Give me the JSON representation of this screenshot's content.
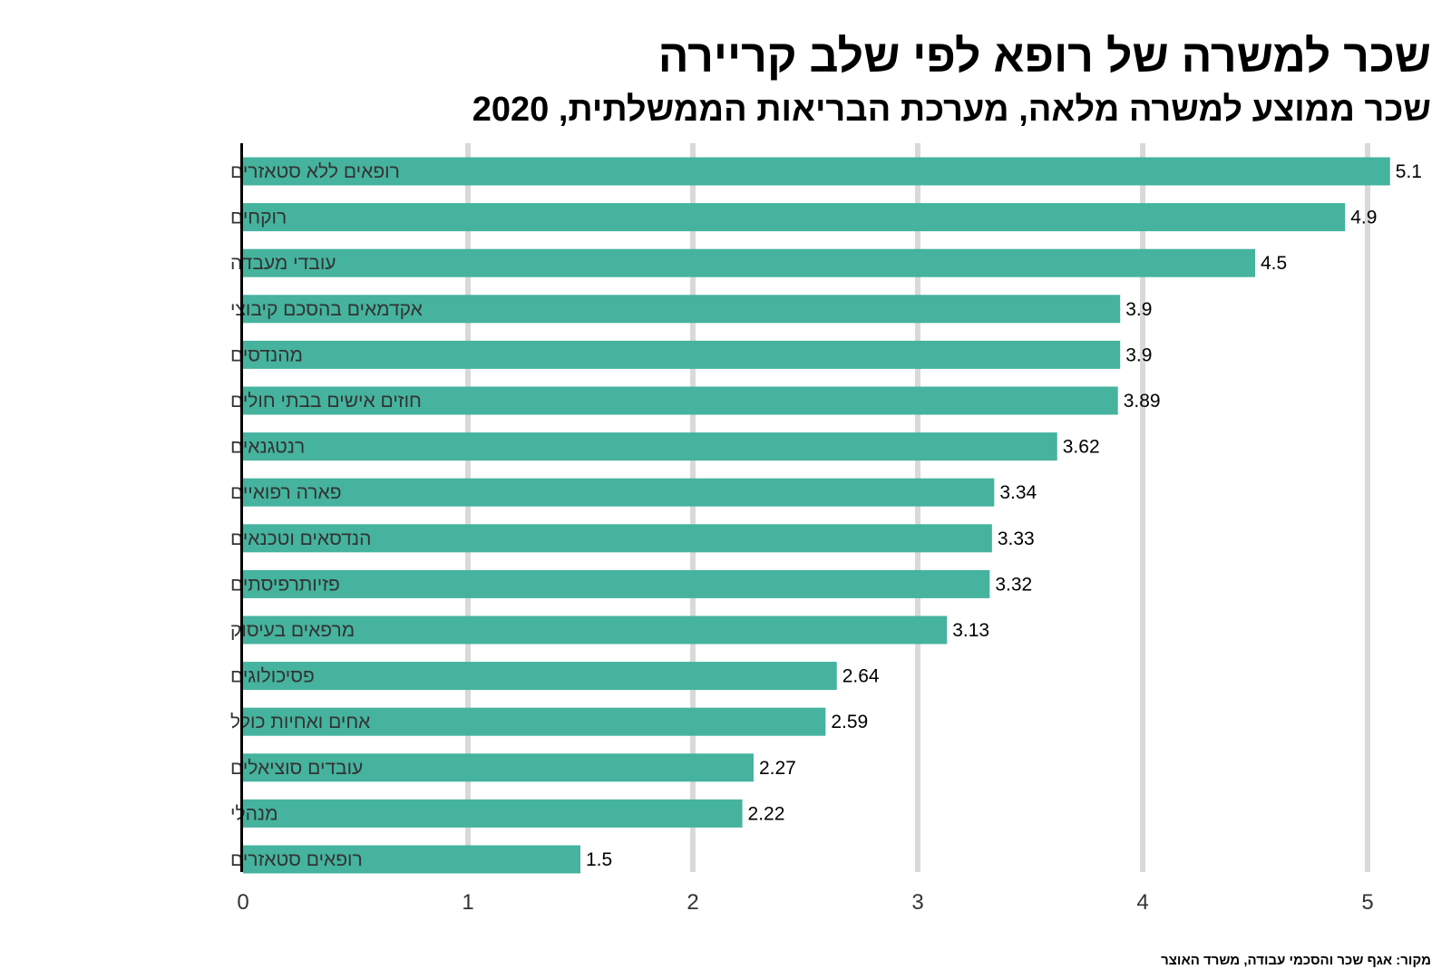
{
  "chart_data": {
    "type": "bar",
    "orientation": "horizontal",
    "title": "שכר למשרה של רופא לפי שלב קריירה",
    "subtitle": "שכר ממוצע למשרה מלאה, מערכת הבריאות הממשלתית, 2020",
    "source": "מקור: אגף שכר והסכמי עבודה, משרד האוצר",
    "categories": [
      "רופאים ללא סטאזרים",
      "רוקחים",
      "עובדי מעבדה",
      "אקדמאים בהסכם קיבוצי",
      "מהנדסים",
      "חוזים אישים בבתי חולים",
      "רנטגנאים",
      "פארה רפואיים",
      "הנדסאים וטכנאים",
      "פזיותרפיסתים",
      "מרפאים בעיסוק",
      "פסיכולוגים",
      "אחים ואחיות כולל",
      "עובדים סוציאלים",
      "מנהלי",
      "רופאים סטאזרים"
    ],
    "values": [
      5.1,
      4.9,
      4.5,
      3.9,
      3.9,
      3.89,
      3.62,
      3.34,
      3.33,
      3.32,
      3.13,
      2.64,
      2.59,
      2.27,
      2.22,
      1.5
    ],
    "value_labels": [
      "5.1",
      "4.9",
      "4.5",
      "3.9",
      "3.9",
      "3.89",
      "3.62",
      "3.34",
      "3.33",
      "3.32",
      "3.13",
      "2.64",
      "2.59",
      "2.27",
      "2.22",
      "1.5"
    ],
    "xticks": [
      0,
      1,
      2,
      3,
      4,
      5
    ],
    "xtick_labels": [
      "0",
      "1",
      "2",
      "3",
      "4",
      "5"
    ],
    "xlim": [
      0,
      5.3
    ],
    "xlabel": "",
    "ylabel": "",
    "grid": "vertical",
    "bar_color": "#45b39d",
    "grid_color": "#d9d9d9"
  }
}
